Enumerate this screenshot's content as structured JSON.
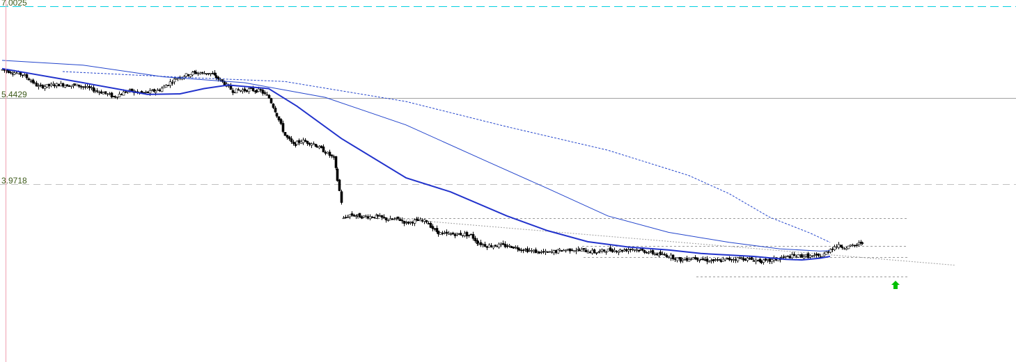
{
  "chart_data": {
    "type": "candlestick",
    "title": "",
    "xlabel": "",
    "ylabel": "",
    "ylim": [
      2.45,
      7.1
    ],
    "grid": false,
    "price_labels": [
      "7.0025",
      "5.4429",
      "3.9718"
    ],
    "horizontal_levels": [
      {
        "value": 7.0025,
        "style": "dashed",
        "color": "#00d0e0"
      },
      {
        "value": 5.4429,
        "style": "solid",
        "color": "#a0a0a0"
      },
      {
        "value": 3.9718,
        "style": "dashed",
        "color": "#c0c0c0"
      }
    ],
    "support_resistance_levels": [
      3.39,
      2.92,
      2.73,
      2.4
    ],
    "trendline": {
      "from_bar": 196,
      "from_value": 3.38,
      "to_bar": 457,
      "to_value": 2.84
    },
    "signal": {
      "type": "up-arrow",
      "bar": 425,
      "value": 2.98,
      "color": "#00c000"
    },
    "colors": {
      "up": "#ffffff",
      "down": "#000000",
      "wick": "#000000",
      "ma_fast": "#2233cc",
      "ma_mid": "#2244cc",
      "ma_slow": "#2244cc"
    },
    "series_segments": [
      {
        "from_bar": 0,
        "to_bar": 168,
        "start": 5.92,
        "end": 3.67,
        "path": [
          [
            0,
            5.92
          ],
          [
            10,
            5.84
          ],
          [
            18,
            5.63
          ],
          [
            28,
            5.67
          ],
          [
            38,
            5.65
          ],
          [
            50,
            5.53
          ],
          [
            55,
            5.46
          ],
          [
            62,
            5.56
          ],
          [
            70,
            5.52
          ],
          [
            78,
            5.58
          ],
          [
            86,
            5.78
          ],
          [
            95,
            5.87
          ],
          [
            103,
            5.86
          ],
          [
            108,
            5.74
          ],
          [
            114,
            5.56
          ],
          [
            122,
            5.58
          ],
          [
            128,
            5.56
          ],
          [
            132,
            5.44
          ],
          [
            136,
            5.15
          ],
          [
            140,
            4.8
          ],
          [
            144,
            4.64
          ],
          [
            148,
            4.71
          ],
          [
            154,
            4.66
          ],
          [
            160,
            4.52
          ],
          [
            164,
            4.41
          ],
          [
            168,
            3.67
          ]
        ]
      },
      {
        "from_bar": 169,
        "to_bar": 405,
        "start": 3.38,
        "end": 2.74,
        "path": [
          [
            169,
            3.38
          ],
          [
            172,
            3.45
          ],
          [
            178,
            3.42
          ],
          [
            185,
            3.42
          ],
          [
            192,
            3.36
          ],
          [
            196,
            3.38
          ],
          [
            200,
            3.31
          ],
          [
            205,
            3.35
          ],
          [
            210,
            3.34
          ],
          [
            214,
            3.18
          ],
          [
            218,
            3.12
          ],
          [
            222,
            3.12
          ],
          [
            228,
            3.12
          ],
          [
            232,
            3.1
          ],
          [
            235,
            2.98
          ],
          [
            240,
            2.92
          ],
          [
            246,
            2.93
          ],
          [
            252,
            2.91
          ],
          [
            258,
            2.86
          ],
          [
            264,
            2.82
          ],
          [
            270,
            2.8
          ],
          [
            276,
            2.84
          ],
          [
            282,
            2.86
          ],
          [
            288,
            2.84
          ],
          [
            294,
            2.81
          ],
          [
            300,
            2.85
          ],
          [
            306,
            2.84
          ],
          [
            312,
            2.87
          ],
          [
            318,
            2.83
          ],
          [
            324,
            2.78
          ],
          [
            330,
            2.75
          ],
          [
            336,
            2.68
          ],
          [
            342,
            2.72
          ],
          [
            348,
            2.68
          ],
          [
            354,
            2.66
          ],
          [
            360,
            2.69
          ],
          [
            366,
            2.71
          ],
          [
            372,
            2.68
          ],
          [
            378,
            2.65
          ],
          [
            384,
            2.7
          ],
          [
            390,
            2.74
          ],
          [
            396,
            2.75
          ],
          [
            402,
            2.74
          ],
          [
            405,
            2.74
          ]
        ]
      },
      {
        "from_bar": 406,
        "to_bar": 426,
        "start": 2.74,
        "end": 2.99,
        "path": [
          [
            406,
            2.74
          ],
          [
            410,
            2.87
          ],
          [
            413,
            2.92
          ],
          [
            418,
            2.9
          ],
          [
            422,
            2.92
          ],
          [
            426,
            2.99
          ]
        ]
      }
    ],
    "moving_averages": [
      {
        "style": "thick",
        "path": [
          [
            0,
            5.94
          ],
          [
            40,
            5.7
          ],
          [
            72,
            5.5
          ],
          [
            88,
            5.51
          ],
          [
            100,
            5.6
          ],
          [
            112,
            5.66
          ],
          [
            132,
            5.6
          ],
          [
            146,
            5.3
          ],
          [
            168,
            4.75
          ],
          [
            200,
            4.08
          ],
          [
            222,
            3.84
          ],
          [
            250,
            3.43
          ],
          [
            270,
            3.18
          ],
          [
            290,
            2.99
          ],
          [
            310,
            2.9
          ],
          [
            330,
            2.85
          ],
          [
            346,
            2.79
          ],
          [
            372,
            2.74
          ],
          [
            388,
            2.69
          ],
          [
            396,
            2.68
          ],
          [
            405,
            2.71
          ],
          [
            410,
            2.74
          ]
        ]
      },
      {
        "style": "thin",
        "path": [
          [
            0,
            6.08
          ],
          [
            40,
            6.0
          ],
          [
            80,
            5.8
          ],
          [
            120,
            5.7
          ],
          [
            160,
            5.45
          ],
          [
            200,
            4.98
          ],
          [
            240,
            4.36
          ],
          [
            270,
            3.9
          ],
          [
            300,
            3.43
          ],
          [
            330,
            3.15
          ],
          [
            360,
            2.98
          ],
          [
            385,
            2.87
          ],
          [
            405,
            2.83
          ],
          [
            410,
            2.84
          ]
        ]
      },
      {
        "style": "dotted",
        "path": [
          [
            30,
            5.89
          ],
          [
            90,
            5.79
          ],
          [
            140,
            5.72
          ],
          [
            200,
            5.38
          ],
          [
            250,
            4.95
          ],
          [
            300,
            4.55
          ],
          [
            340,
            4.12
          ],
          [
            360,
            3.81
          ],
          [
            380,
            3.41
          ],
          [
            400,
            3.14
          ],
          [
            410,
            2.98
          ]
        ]
      }
    ]
  }
}
